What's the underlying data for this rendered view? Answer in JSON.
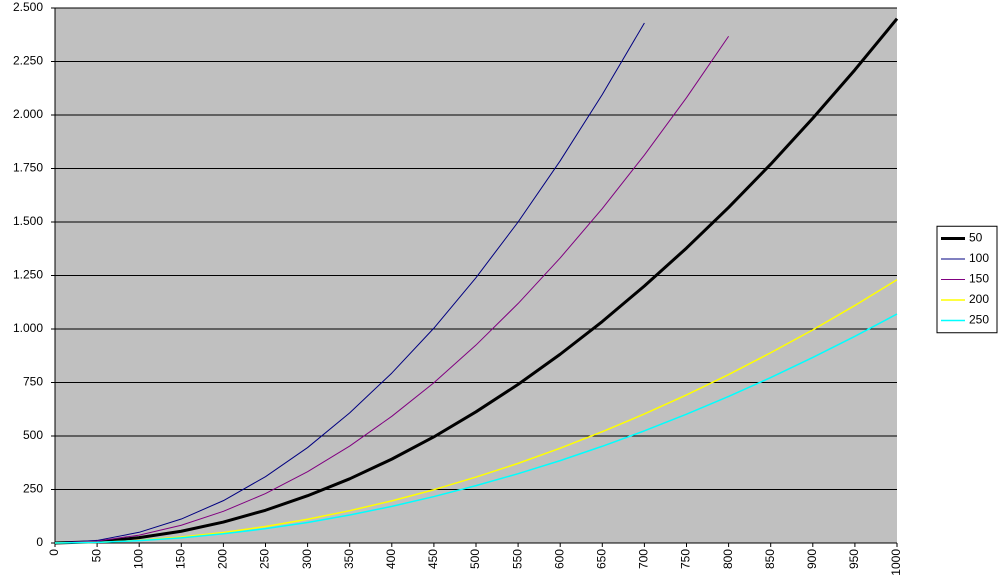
{
  "chart_data": {
    "type": "line",
    "x": [
      0,
      50,
      100,
      150,
      200,
      250,
      300,
      350,
      400,
      450,
      500,
      550,
      600,
      650,
      700,
      750,
      800,
      850,
      900,
      950,
      1000
    ],
    "xlim": [
      0,
      1000
    ],
    "xticks": [
      0,
      50,
      100,
      150,
      200,
      250,
      300,
      350,
      400,
      450,
      500,
      550,
      600,
      650,
      700,
      750,
      800,
      850,
      900,
      950,
      1000
    ],
    "ylim": [
      0,
      2500
    ],
    "yticks": [
      0,
      250,
      500,
      750,
      {
        "value": 1000,
        "label": "1.000"
      },
      {
        "value": 1250,
        "label": "1.250"
      },
      {
        "value": 1500,
        "label": "1.500"
      },
      {
        "value": 1750,
        "label": "1.750"
      },
      {
        "value": 2000,
        "label": "2.000"
      },
      {
        "value": 2250,
        "label": "2.250"
      },
      {
        "value": 2500,
        "label": "2.500"
      }
    ],
    "grid": true,
    "legend": "right",
    "background": "#c0c0c0",
    "series": [
      {
        "name": "50",
        "color": "#000000",
        "width": 3,
        "values": [
          0,
          6,
          25,
          55,
          98,
          153,
          221,
          300,
          392,
          496,
          613,
          741,
          882,
          1035,
          1201,
          1378,
          1568,
          1770,
          1985,
          2211,
          2450
        ]
      },
      {
        "name": "100",
        "color": "#000080",
        "width": 1,
        "values": [
          0,
          12,
          50,
          112,
          198,
          310,
          446,
          608,
          794,
          1004,
          1240,
          1500,
          1786,
          2096,
          2430,
          null,
          null,
          null,
          null,
          null,
          null
        ]
      },
      {
        "name": "150",
        "color": "#800080",
        "width": 1,
        "values": [
          0,
          9,
          37,
          83,
          148,
          231,
          333,
          453,
          592,
          749,
          925,
          1119,
          1332,
          1563,
          1813,
          2081,
          2368,
          null,
          null,
          null,
          null
        ]
      },
      {
        "name": "200",
        "color": "#ffff00",
        "width": 1.5,
        "values": [
          0,
          3,
          12,
          28,
          49,
          77,
          111,
          151,
          197,
          249,
          308,
          372,
          443,
          520,
          603,
          692,
          787,
          889,
          996,
          1110,
          1230
        ]
      },
      {
        "name": "250",
        "color": "#00ffff",
        "width": 1.5,
        "values": [
          0,
          3,
          11,
          24,
          43,
          67,
          96,
          131,
          171,
          217,
          268,
          324,
          385,
          452,
          524,
          602,
          685,
          773,
          867,
          966,
          1070
        ]
      }
    ]
  }
}
